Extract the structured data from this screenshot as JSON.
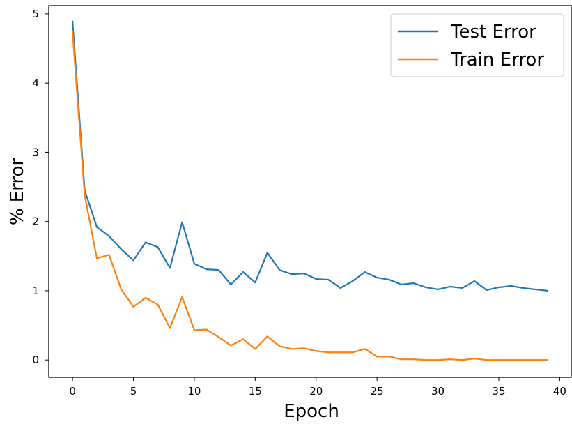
{
  "chart_data": {
    "type": "line",
    "title": "",
    "xlabel": "Epoch",
    "ylabel": "% Error",
    "xlim": [
      -1.95,
      40.95
    ],
    "ylim": [
      -0.25,
      5.12
    ],
    "xticks": [
      0,
      5,
      10,
      15,
      20,
      25,
      30,
      35,
      40
    ],
    "xtick_labels": [
      "0",
      "5",
      "10",
      "15",
      "20",
      "25",
      "30",
      "35",
      "40"
    ],
    "yticks": [
      0,
      1,
      2,
      3,
      4,
      5
    ],
    "ytick_labels": [
      "0",
      "1",
      "2",
      "3",
      "4",
      "5"
    ],
    "grid": false,
    "legend_position": "top-right",
    "x": [
      0,
      1,
      2,
      3,
      4,
      5,
      6,
      7,
      8,
      9,
      10,
      11,
      12,
      13,
      14,
      15,
      16,
      17,
      18,
      19,
      20,
      21,
      22,
      23,
      24,
      25,
      26,
      27,
      28,
      29,
      30,
      31,
      32,
      33,
      34,
      35,
      36,
      37,
      38,
      39
    ],
    "series": [
      {
        "name": "Test Error",
        "color": "#1f77b4",
        "values": [
          4.89,
          2.45,
          1.92,
          1.79,
          1.6,
          1.44,
          1.7,
          1.63,
          1.33,
          1.99,
          1.39,
          1.31,
          1.3,
          1.09,
          1.27,
          1.12,
          1.55,
          1.3,
          1.24,
          1.25,
          1.17,
          1.16,
          1.04,
          1.14,
          1.27,
          1.19,
          1.16,
          1.09,
          1.11,
          1.05,
          1.02,
          1.06,
          1.04,
          1.14,
          1.01,
          1.05,
          1.07,
          1.04,
          1.02,
          1.0
        ]
      },
      {
        "name": "Train Error",
        "color": "#ff7f0e",
        "values": [
          4.75,
          2.38,
          1.47,
          1.52,
          1.02,
          0.77,
          0.9,
          0.8,
          0.46,
          0.91,
          0.43,
          0.44,
          0.33,
          0.21,
          0.3,
          0.16,
          0.34,
          0.2,
          0.16,
          0.17,
          0.13,
          0.11,
          0.11,
          0.11,
          0.16,
          0.05,
          0.05,
          0.01,
          0.01,
          0.0,
          0.0,
          0.01,
          0.0,
          0.02,
          0.0,
          0.0,
          0.0,
          0.0,
          0.0,
          0.0
        ]
      }
    ]
  }
}
